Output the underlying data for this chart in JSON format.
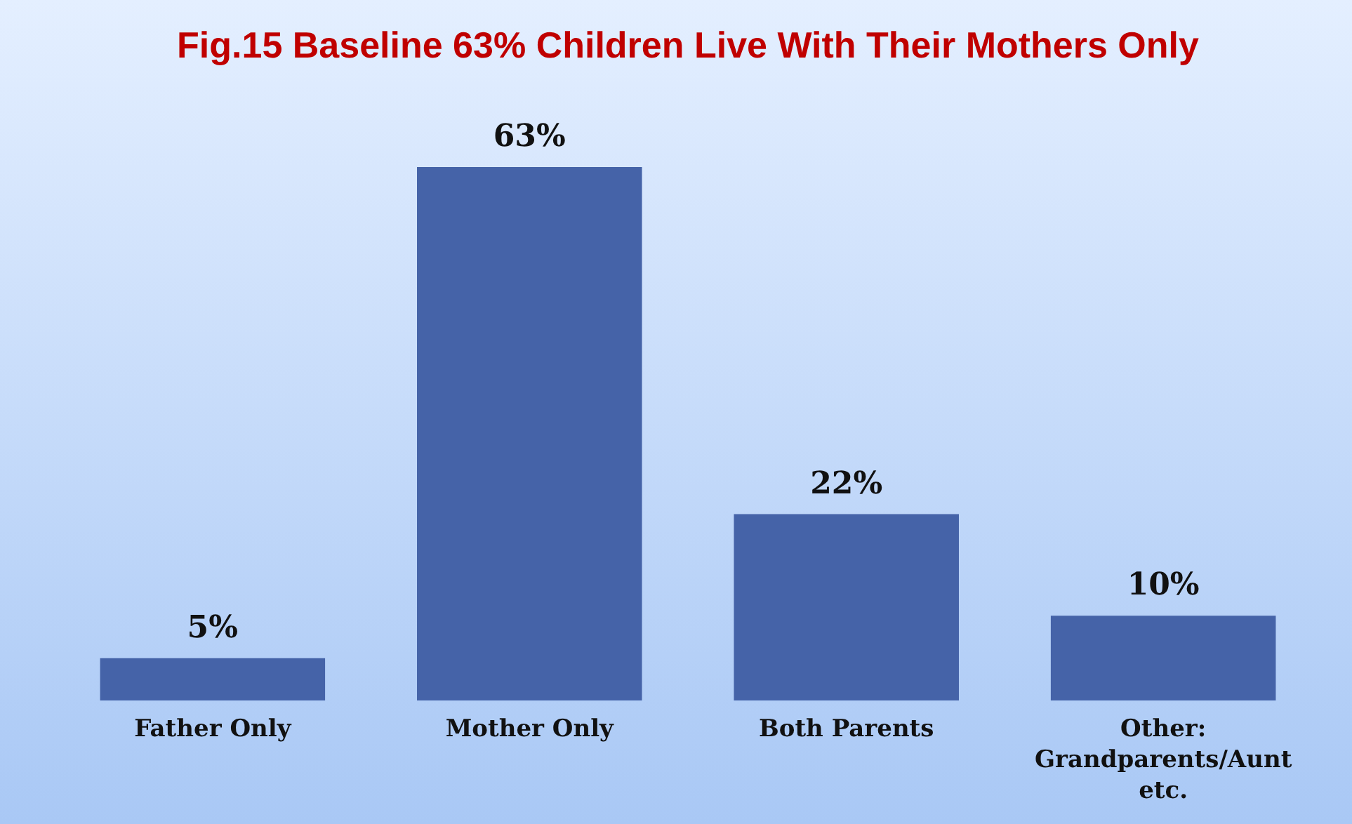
{
  "chart_data": {
    "type": "bar",
    "title": "Fig.15 Baseline 63% Children Live With Their Mothers Only",
    "categories": [
      "Father Only",
      "Mother Only",
      "Both Parents",
      "Other: Grandparents/Aunt etc."
    ],
    "values": [
      5,
      63,
      22,
      10
    ],
    "value_labels": [
      "5%",
      "63%",
      "22%",
      "10%"
    ],
    "color": "#4563a8"
  }
}
